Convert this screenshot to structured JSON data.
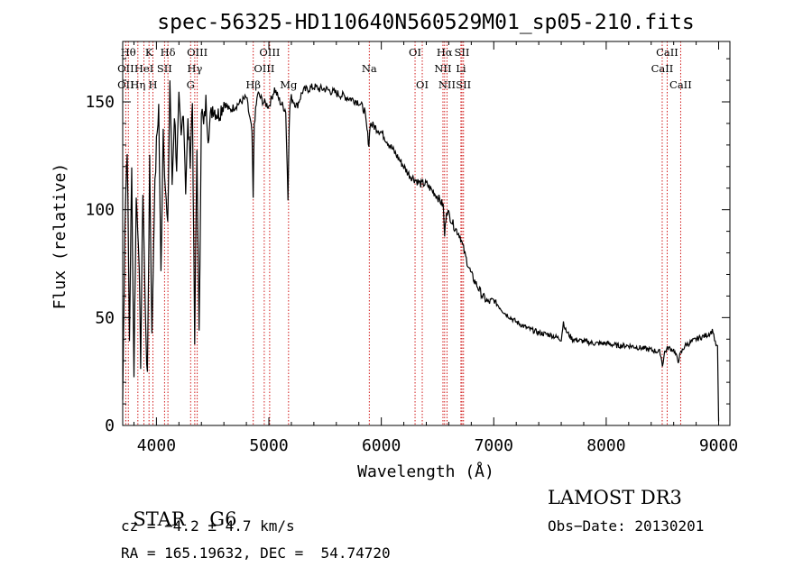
{
  "chart_data": {
    "type": "line",
    "title": "spec-56325-HD110640N560529M01_sp05-210.fits",
    "xlabel": "Wavelength (Å)",
    "ylabel": "Flux (relative)",
    "xlim": [
      3700,
      9100
    ],
    "ylim": [
      0,
      178
    ],
    "x_ticks": [
      4000,
      5000,
      6000,
      7000,
      8000,
      9000
    ],
    "y_ticks": [
      0,
      50,
      100,
      150
    ],
    "grid": false,
    "series": [
      {
        "x": [
          3700,
          3720,
          3740,
          3760,
          3780,
          3800,
          3820,
          3840,
          3860,
          3880,
          3900,
          3920,
          3940,
          3960,
          3980,
          4000,
          4020,
          4040,
          4060,
          4080,
          4100,
          4120,
          4140,
          4160,
          4180,
          4200,
          4220,
          4240,
          4260,
          4280,
          4300,
          4320,
          4340,
          4360,
          4380,
          4400,
          4420,
          4440,
          4460,
          4480,
          4500,
          4550,
          4600,
          4650,
          4700,
          4750,
          4800,
          4850,
          4860,
          4870,
          4900,
          4950,
          5000,
          5050,
          5100,
          5150,
          5170,
          5180,
          5190,
          5200,
          5250,
          5300,
          5350,
          5400,
          5450,
          5500,
          5550,
          5600,
          5650,
          5700,
          5750,
          5800,
          5850,
          5890,
          5900,
          5950,
          6000,
          6050,
          6100,
          6150,
          6200,
          6250,
          6300,
          6350,
          6400,
          6450,
          6500,
          6550,
          6563,
          6580,
          6600,
          6650,
          6700,
          6750,
          6800,
          6850,
          6900,
          6950,
          7000,
          7050,
          7100,
          7150,
          7200,
          7300,
          7400,
          7500,
          7600,
          7620,
          7640,
          7700,
          7800,
          7900,
          8000,
          8100,
          8200,
          8300,
          8400,
          8480,
          8500,
          8520,
          8550,
          8600,
          8640,
          8660,
          8700,
          8800,
          8900,
          8950,
          8970,
          8990,
          9000
        ],
        "y": [
          12,
          95,
          130,
          40,
          118,
          25,
          105,
          88,
          30,
          110,
          55,
          20,
          125,
          40,
          100,
          130,
          148,
          70,
          138,
          110,
          90,
          160,
          112,
          145,
          120,
          150,
          132,
          148,
          110,
          140,
          124,
          150,
          38,
          128,
          40,
          148,
          138,
          150,
          135,
          142,
          148,
          144,
          150,
          146,
          148,
          150,
          152,
          136,
          105,
          140,
          154,
          150,
          148,
          156,
          150,
          146,
          105,
          140,
          150,
          152,
          148,
          155,
          156,
          157,
          156,
          156,
          155,
          154,
          153,
          152,
          151,
          150,
          146,
          130,
          140,
          138,
          136,
          132,
          128,
          124,
          120,
          116,
          114,
          112,
          112,
          109,
          106,
          102,
          88,
          100,
          98,
          92,
          88,
          78,
          70,
          65,
          60,
          57,
          58,
          55,
          52,
          50,
          48,
          45,
          43,
          42,
          40,
          48,
          44,
          40,
          39,
          38,
          38,
          37,
          37,
          36,
          35,
          34,
          28,
          34,
          36,
          35,
          30,
          33,
          37,
          40,
          42,
          44,
          38,
          36,
          2
        ]
      }
    ],
    "line_labels": [
      {
        "label": "Hθ",
        "wl": 3750,
        "row": 0
      },
      {
        "label": "OII",
        "wl": 3727,
        "row": 1
      },
      {
        "label": "OII",
        "wl": 3727,
        "row": 2
      },
      {
        "label": "Hη",
        "wl": 3835,
        "row": 2
      },
      {
        "label": "HeI",
        "wl": 3889,
        "row": 1
      },
      {
        "label": "K",
        "wl": 3934,
        "row": 0
      },
      {
        "label": "H",
        "wl": 3969,
        "row": 2
      },
      {
        "label": "Hδ",
        "wl": 4102,
        "row": 0
      },
      {
        "label": "SII",
        "wl": 4072,
        "row": 1
      },
      {
        "label": "OIII",
        "wl": 4363,
        "row": 0
      },
      {
        "label": "Hγ",
        "wl": 4341,
        "row": 1
      },
      {
        "label": "G",
        "wl": 4304,
        "row": 2
      },
      {
        "label": "Hβ",
        "wl": 4861,
        "row": 2
      },
      {
        "label": "OIII",
        "wl": 5007,
        "row": 0
      },
      {
        "label": "OIII",
        "wl": 4959,
        "row": 1
      },
      {
        "label": "Mg",
        "wl": 5175,
        "row": 2
      },
      {
        "label": "Na",
        "wl": 5893,
        "row": 1
      },
      {
        "label": "OI",
        "wl": 6300,
        "row": 0
      },
      {
        "label": "OI",
        "wl": 6364,
        "row": 2
      },
      {
        "label": "Hα",
        "wl": 6563,
        "row": 0
      },
      {
        "label": "NII",
        "wl": 6548,
        "row": 1
      },
      {
        "label": "NII",
        "wl": 6584,
        "row": 2
      },
      {
        "label": "SII",
        "wl": 6717,
        "row": 0
      },
      {
        "label": "Li",
        "wl": 6708,
        "row": 1
      },
      {
        "label": "SII",
        "wl": 6731,
        "row": 2
      },
      {
        "label": "CaII",
        "wl": 8542,
        "row": 0
      },
      {
        "label": "CaII",
        "wl": 8498,
        "row": 1
      },
      {
        "label": "CaII",
        "wl": 8662,
        "row": 2
      }
    ],
    "line_colors": {
      "spectrum": "#000000",
      "line_markers": "#cc0000"
    }
  },
  "info": {
    "class_label": "STAR",
    "subclass": "G6",
    "survey": "LAMOST DR3",
    "cz": "cz = −4.2 ± 4.7 km/s",
    "obs_date": "Obs−Date: 20130201",
    "coords": "RA = 165.19632, DEC =  54.74720"
  }
}
